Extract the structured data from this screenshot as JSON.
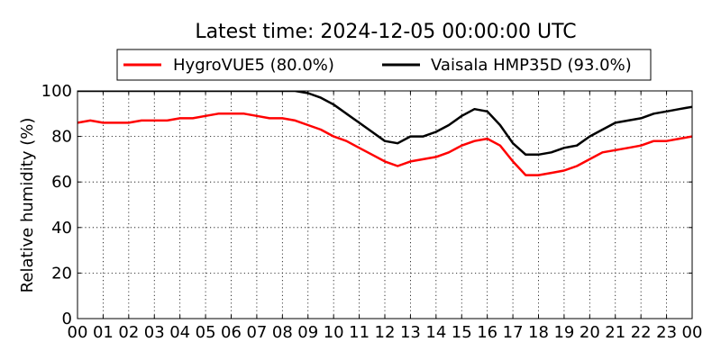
{
  "chart_data": {
    "type": "line",
    "title": "Latest time: 2024-12-05 00:00:00 UTC",
    "xlabel": "",
    "ylabel": "Relative humidity (%)",
    "xlim": [
      0,
      24
    ],
    "ylim": [
      0,
      100
    ],
    "x_ticks": [
      "00",
      "01",
      "02",
      "03",
      "04",
      "05",
      "06",
      "07",
      "08",
      "09",
      "10",
      "11",
      "12",
      "13",
      "14",
      "15",
      "16",
      "17",
      "18",
      "19",
      "20",
      "21",
      "22",
      "23",
      "00"
    ],
    "y_ticks": [
      "0",
      "20",
      "40",
      "60",
      "80",
      "100"
    ],
    "grid": true,
    "legend_position": "top",
    "series": [
      {
        "name": "HygroVUE5 (80.0%)",
        "color": "#ff0000",
        "x": [
          0,
          0.5,
          1,
          1.5,
          2,
          2.5,
          3,
          3.5,
          4,
          4.5,
          5,
          5.5,
          6,
          6.5,
          7,
          7.5,
          8,
          8.5,
          9,
          9.5,
          10,
          10.5,
          11,
          11.5,
          12,
          12.5,
          13,
          13.5,
          14,
          14.5,
          15,
          15.5,
          16,
          16.5,
          17,
          17.5,
          18,
          18.5,
          19,
          19.5,
          20,
          20.5,
          21,
          21.5,
          22,
          22.5,
          23,
          23.5,
          24
        ],
        "values": [
          86,
          87,
          86,
          86,
          86,
          87,
          87,
          87,
          88,
          88,
          89,
          90,
          90,
          90,
          89,
          88,
          88,
          87,
          85,
          83,
          80,
          78,
          75,
          72,
          69,
          67,
          69,
          70,
          71,
          73,
          76,
          78,
          79,
          76,
          69,
          63,
          63,
          64,
          65,
          67,
          70,
          73,
          74,
          75,
          76,
          78,
          78,
          79,
          80
        ]
      },
      {
        "name": "Vaisala HMP35D (93.0%)",
        "color": "#000000",
        "x": [
          0,
          1,
          2,
          3,
          4,
          5,
          6,
          7,
          8,
          8.5,
          9,
          9.5,
          10,
          10.5,
          11,
          11.5,
          12,
          12.5,
          13,
          13.5,
          14,
          14.5,
          15,
          15.5,
          16,
          16.5,
          17,
          17.5,
          18,
          18.5,
          19,
          19.5,
          20,
          20.5,
          21,
          21.5,
          22,
          22.5,
          23,
          23.5,
          24
        ],
        "values": [
          100,
          100,
          100,
          100,
          100,
          100,
          100,
          100,
          100,
          100,
          99,
          97,
          94,
          90,
          86,
          82,
          78,
          77,
          80,
          80,
          82,
          85,
          89,
          92,
          91,
          85,
          77,
          72,
          72,
          73,
          75,
          76,
          80,
          83,
          86,
          87,
          88,
          90,
          91,
          92,
          93
        ]
      }
    ]
  }
}
